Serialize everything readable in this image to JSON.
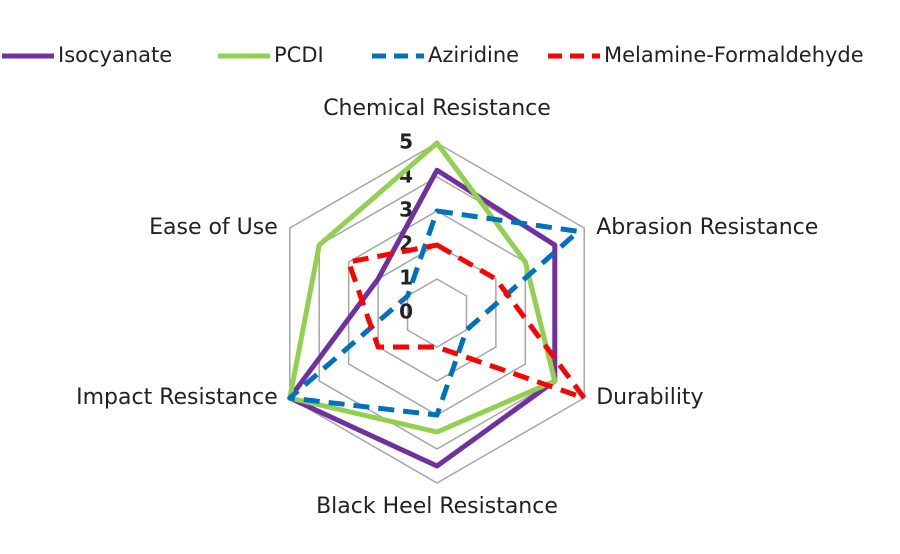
{
  "chart_data": {
    "type": "radar",
    "categories": [
      "Chemical Resistance",
      "Abrasion Resistance",
      "Durability",
      "Black Heel Resistance",
      "Impact Resistance",
      "Ease of Use"
    ],
    "ylim": [
      0,
      5
    ],
    "yticks": [
      0,
      1,
      2,
      3,
      4,
      5
    ],
    "grid": true,
    "legend": "top",
    "series": [
      {
        "name": "Isocyanate",
        "color": "#7030a0",
        "dash": false,
        "values": [
          4.2,
          4,
          4,
          4.5,
          5,
          2
        ]
      },
      {
        "name": "PCDI",
        "color": "#92d050",
        "dash": false,
        "values": [
          5,
          3,
          4,
          3.5,
          5,
          4
        ]
      },
      {
        "name": "Aziridine",
        "color": "#0070c0",
        "dash": true,
        "values": [
          3,
          4.8,
          1,
          3,
          5,
          1
        ]
      },
      {
        "name": "Melamine-Formaldehyde",
        "color": "#ff0000",
        "dash": true,
        "values": [
          2,
          2,
          5,
          1,
          2,
          3
        ]
      }
    ]
  }
}
